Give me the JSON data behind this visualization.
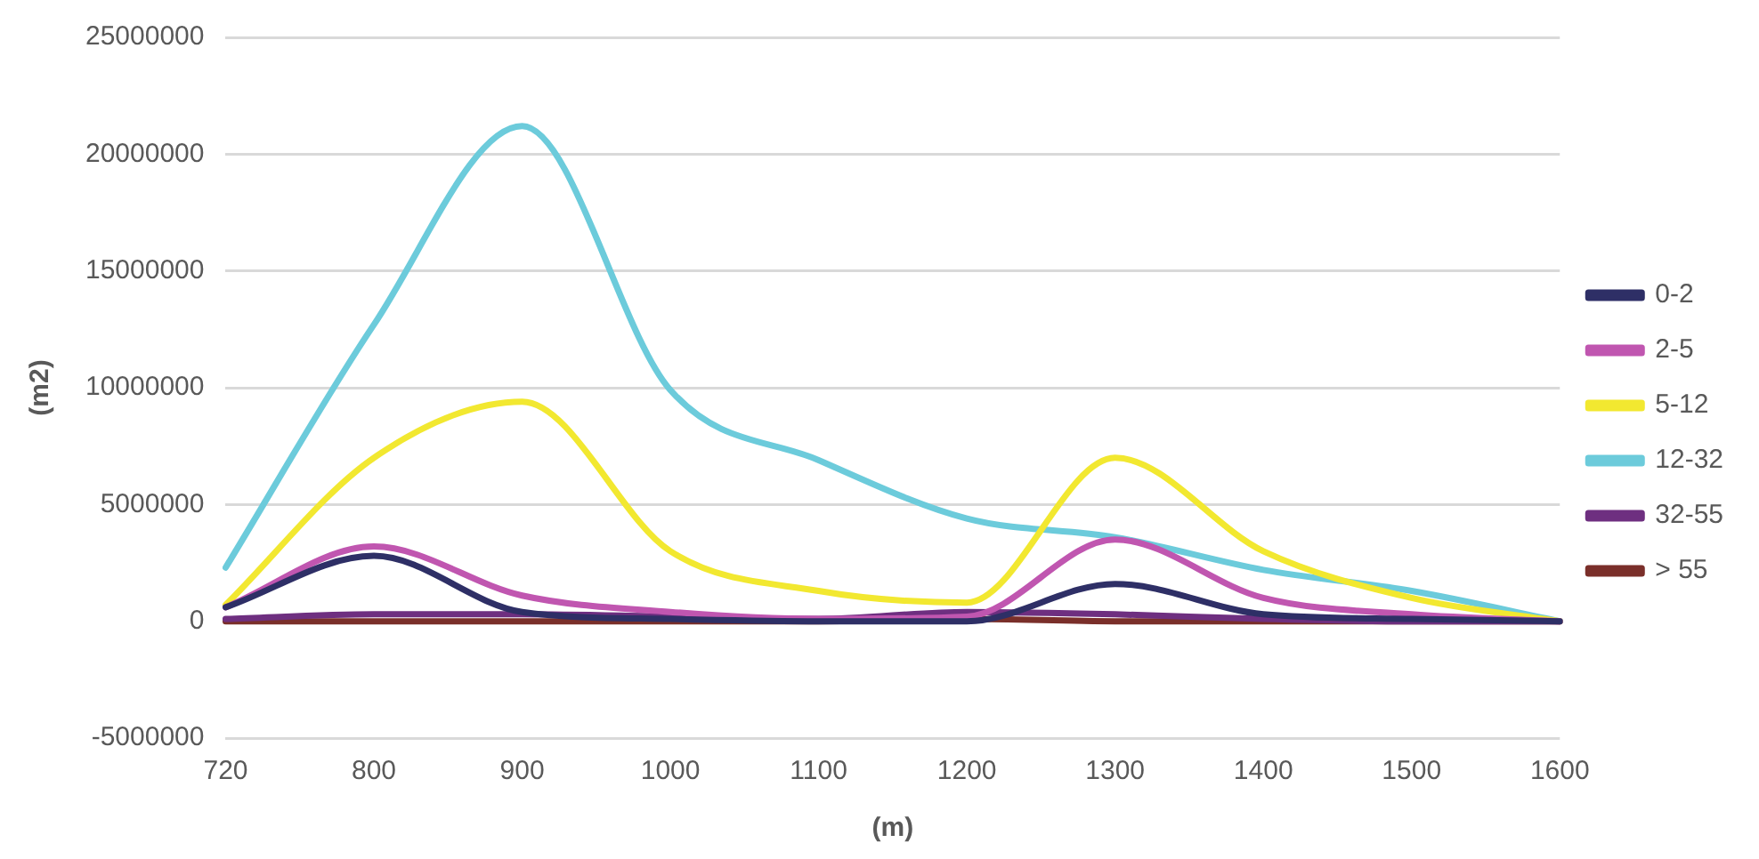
{
  "chart_data": {
    "type": "line",
    "xlabel": "(m)",
    "ylabel": "(m2)",
    "categories": [
      "720",
      "800",
      "900",
      "1000",
      "1100",
      "1200",
      "1300",
      "1400",
      "1500",
      "1600"
    ],
    "series": [
      {
        "name": "0-2",
        "color": "#2e2f66",
        "values": [
          600000,
          2800000,
          400000,
          100000,
          0,
          0,
          1600000,
          300000,
          100000,
          0
        ]
      },
      {
        "name": "2-5",
        "color": "#c056b0",
        "values": [
          600000,
          3200000,
          1100000,
          400000,
          100000,
          200000,
          3500000,
          1000000,
          300000,
          0
        ]
      },
      {
        "name": "5-12",
        "color": "#f2e830",
        "values": [
          700000,
          7000000,
          9400000,
          3000000,
          1300000,
          800000,
          7000000,
          3000000,
          1000000,
          0
        ]
      },
      {
        "name": "12-32",
        "color": "#6ccbdb",
        "values": [
          2300000,
          12700000,
          21200000,
          9900000,
          6900000,
          4400000,
          3600000,
          2200000,
          1300000,
          0
        ]
      },
      {
        "name": "32-55",
        "color": "#6e2f80",
        "values": [
          100000,
          300000,
          300000,
          200000,
          100000,
          400000,
          300000,
          100000,
          0,
          0
        ]
      },
      {
        "name": "> 55",
        "color": "#7a2f2a",
        "values": [
          0,
          0,
          0,
          0,
          0,
          100000,
          0,
          0,
          0,
          0
        ]
      }
    ],
    "ylim": [
      -5000000,
      25000000
    ],
    "yticks": [
      -5000000,
      0,
      5000000,
      10000000,
      15000000,
      20000000,
      25000000
    ],
    "grid": "y",
    "legend": "right",
    "marker": "none",
    "line_style": "solid"
  }
}
